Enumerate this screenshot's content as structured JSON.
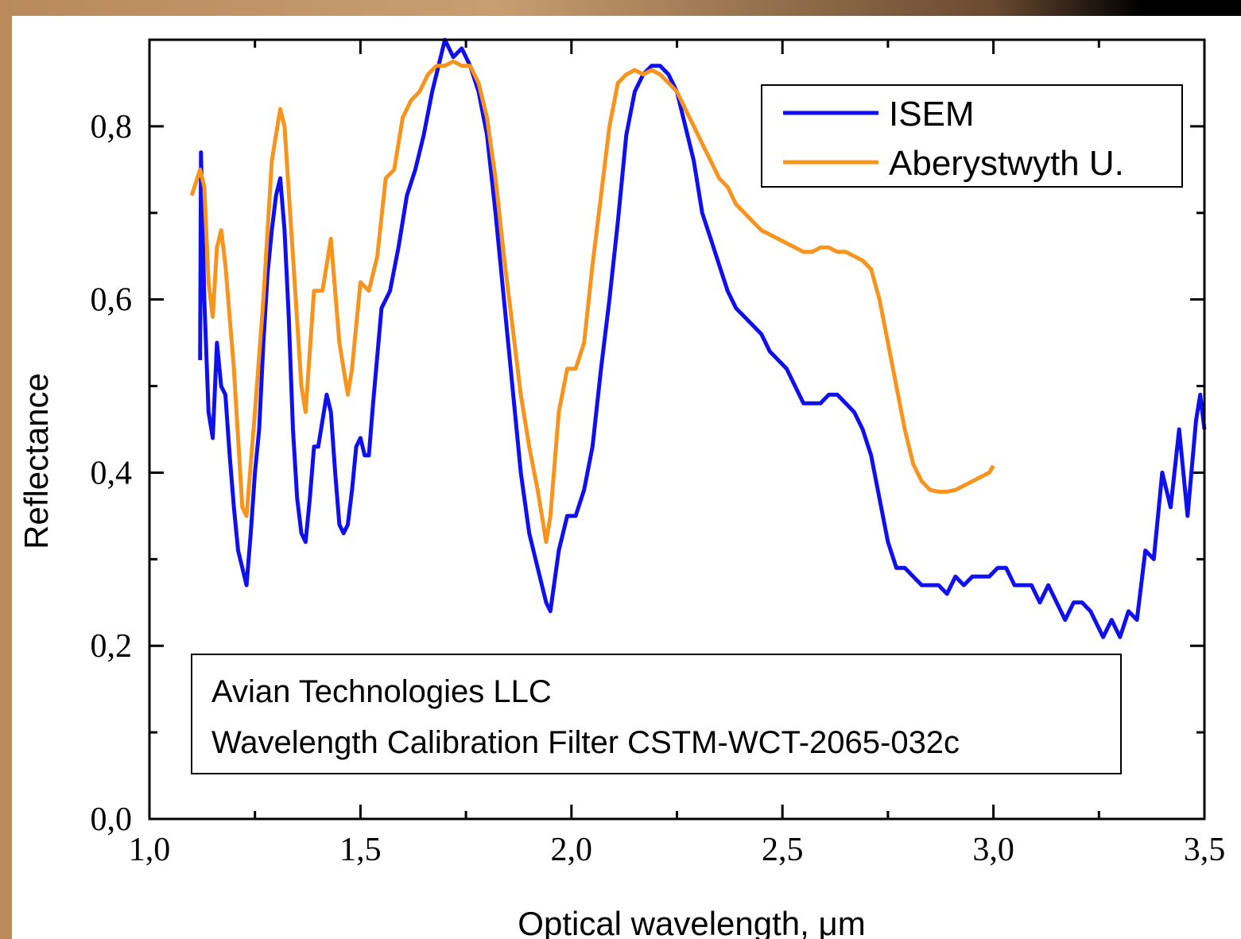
{
  "chart_data": {
    "type": "line",
    "x_label": "Optical wavelength, μm",
    "y_label": "Reflectance",
    "annotations": [
      "Avian Technologies LLC",
      "Wavelength Calibration Filter CSTM-WCT-2065-032c"
    ],
    "legend": "upper right",
    "xlim": [
      1,
      3.5
    ],
    "ylim": [
      0,
      0.9
    ],
    "xticks": [
      {
        "value": 1,
        "label": "1,0"
      },
      {
        "value": 1.5,
        "label": "1,5"
      },
      {
        "value": 2,
        "label": "2,0"
      },
      {
        "value": 2.5,
        "label": "2,5"
      },
      {
        "value": 3,
        "label": "3,0"
      },
      {
        "value": 3.5,
        "label": "3,5"
      }
    ],
    "yticks": [
      {
        "value": 0,
        "label": "0,0"
      },
      {
        "value": 0.2,
        "label": "0,2"
      },
      {
        "value": 0.4,
        "label": "0,4"
      },
      {
        "value": 0.6,
        "label": "0,6"
      },
      {
        "value": 0.8,
        "label": "0,8"
      }
    ],
    "x_minor_ticks": [
      1.25,
      1.75,
      2.25,
      2.75,
      3.25
    ],
    "y_minor_ticks": [
      0.1,
      0.3,
      0.5,
      0.7
    ],
    "series": [
      {
        "name": "ISEM",
        "color": "#1010ee",
        "x": [
          1.12,
          1.122,
          1.13,
          1.14,
          1.15,
          1.16,
          1.17,
          1.18,
          1.19,
          1.2,
          1.21,
          1.22,
          1.23,
          1.24,
          1.25,
          1.26,
          1.27,
          1.28,
          1.29,
          1.3,
          1.31,
          1.32,
          1.33,
          1.34,
          1.35,
          1.36,
          1.37,
          1.38,
          1.39,
          1.4,
          1.41,
          1.42,
          1.43,
          1.44,
          1.45,
          1.46,
          1.47,
          1.48,
          1.49,
          1.5,
          1.51,
          1.52,
          1.53,
          1.55,
          1.57,
          1.59,
          1.61,
          1.63,
          1.65,
          1.67,
          1.69,
          1.7,
          1.72,
          1.74,
          1.76,
          1.78,
          1.8,
          1.82,
          1.84,
          1.86,
          1.88,
          1.9,
          1.92,
          1.94,
          1.95,
          1.97,
          1.99,
          2.01,
          2.03,
          2.05,
          2.07,
          2.09,
          2.11,
          2.13,
          2.15,
          2.17,
          2.19,
          2.21,
          2.23,
          2.25,
          2.27,
          2.29,
          2.31,
          2.33,
          2.35,
          2.37,
          2.39,
          2.41,
          2.43,
          2.45,
          2.47,
          2.49,
          2.51,
          2.53,
          2.55,
          2.57,
          2.59,
          2.61,
          2.63,
          2.65,
          2.67,
          2.69,
          2.71,
          2.73,
          2.75,
          2.77,
          2.79,
          2.81,
          2.83,
          2.85,
          2.87,
          2.89,
          2.91,
          2.93,
          2.95,
          2.97,
          2.99,
          3.01,
          3.03,
          3.05,
          3.07,
          3.09,
          3.11,
          3.13,
          3.15,
          3.17,
          3.19,
          3.21,
          3.23,
          3.25,
          3.26,
          3.28,
          3.3,
          3.32,
          3.34,
          3.36,
          3.38,
          3.4,
          3.42,
          3.44,
          3.46,
          3.48,
          3.49,
          3.5
        ],
        "values": [
          0.53,
          0.77,
          0.6,
          0.47,
          0.44,
          0.55,
          0.5,
          0.49,
          0.42,
          0.36,
          0.31,
          0.29,
          0.27,
          0.33,
          0.4,
          0.45,
          0.55,
          0.63,
          0.68,
          0.72,
          0.74,
          0.68,
          0.58,
          0.45,
          0.37,
          0.33,
          0.32,
          0.37,
          0.43,
          0.43,
          0.46,
          0.49,
          0.47,
          0.4,
          0.34,
          0.33,
          0.34,
          0.38,
          0.43,
          0.44,
          0.42,
          0.42,
          0.48,
          0.59,
          0.61,
          0.66,
          0.72,
          0.75,
          0.79,
          0.84,
          0.88,
          0.9,
          0.88,
          0.89,
          0.87,
          0.84,
          0.79,
          0.7,
          0.6,
          0.5,
          0.4,
          0.33,
          0.29,
          0.25,
          0.24,
          0.31,
          0.35,
          0.35,
          0.38,
          0.43,
          0.52,
          0.6,
          0.69,
          0.79,
          0.84,
          0.86,
          0.87,
          0.87,
          0.86,
          0.84,
          0.8,
          0.76,
          0.7,
          0.67,
          0.64,
          0.61,
          0.59,
          0.58,
          0.57,
          0.56,
          0.54,
          0.53,
          0.52,
          0.5,
          0.48,
          0.48,
          0.48,
          0.49,
          0.49,
          0.48,
          0.47,
          0.45,
          0.42,
          0.37,
          0.32,
          0.29,
          0.29,
          0.28,
          0.27,
          0.27,
          0.27,
          0.26,
          0.28,
          0.27,
          0.28,
          0.28,
          0.28,
          0.29,
          0.29,
          0.27,
          0.27,
          0.27,
          0.25,
          0.27,
          0.25,
          0.23,
          0.25,
          0.25,
          0.24,
          0.22,
          0.21,
          0.23,
          0.21,
          0.24,
          0.23,
          0.31,
          0.3,
          0.4,
          0.36,
          0.45,
          0.35,
          0.46,
          0.49,
          0.45
        ]
      },
      {
        "name": "Aberystwyth U.",
        "color": "#f7941d",
        "x": [
          1.1,
          1.12,
          1.13,
          1.14,
          1.15,
          1.16,
          1.17,
          1.18,
          1.2,
          1.22,
          1.23,
          1.25,
          1.27,
          1.29,
          1.31,
          1.32,
          1.34,
          1.36,
          1.37,
          1.39,
          1.41,
          1.43,
          1.45,
          1.47,
          1.48,
          1.5,
          1.52,
          1.54,
          1.56,
          1.58,
          1.6,
          1.62,
          1.64,
          1.66,
          1.68,
          1.7,
          1.72,
          1.74,
          1.76,
          1.78,
          1.8,
          1.82,
          1.84,
          1.86,
          1.88,
          1.9,
          1.92,
          1.94,
          1.95,
          1.97,
          1.99,
          2.01,
          2.03,
          2.05,
          2.07,
          2.09,
          2.11,
          2.13,
          2.15,
          2.17,
          2.19,
          2.21,
          2.23,
          2.25,
          2.27,
          2.29,
          2.31,
          2.33,
          2.35,
          2.37,
          2.39,
          2.41,
          2.43,
          2.45,
          2.47,
          2.49,
          2.51,
          2.53,
          2.55,
          2.57,
          2.59,
          2.61,
          2.63,
          2.65,
          2.67,
          2.69,
          2.71,
          2.73,
          2.75,
          2.77,
          2.79,
          2.81,
          2.83,
          2.85,
          2.87,
          2.89,
          2.91,
          2.93,
          2.95,
          2.97,
          2.99,
          3
        ],
        "values": [
          0.72,
          0.75,
          0.73,
          0.62,
          0.58,
          0.66,
          0.68,
          0.64,
          0.52,
          0.36,
          0.35,
          0.47,
          0.6,
          0.76,
          0.82,
          0.8,
          0.65,
          0.5,
          0.47,
          0.61,
          0.61,
          0.67,
          0.55,
          0.49,
          0.52,
          0.62,
          0.61,
          0.65,
          0.74,
          0.75,
          0.81,
          0.83,
          0.84,
          0.86,
          0.87,
          0.87,
          0.875,
          0.87,
          0.87,
          0.85,
          0.81,
          0.74,
          0.65,
          0.57,
          0.49,
          0.43,
          0.38,
          0.32,
          0.35,
          0.47,
          0.52,
          0.52,
          0.55,
          0.64,
          0.72,
          0.8,
          0.85,
          0.86,
          0.865,
          0.86,
          0.865,
          0.86,
          0.85,
          0.84,
          0.82,
          0.8,
          0.78,
          0.76,
          0.74,
          0.73,
          0.71,
          0.7,
          0.69,
          0.68,
          0.675,
          0.67,
          0.665,
          0.66,
          0.655,
          0.655,
          0.66,
          0.66,
          0.655,
          0.655,
          0.65,
          0.645,
          0.635,
          0.6,
          0.55,
          0.5,
          0.45,
          0.41,
          0.39,
          0.38,
          0.378,
          0.378,
          0.38,
          0.385,
          0.39,
          0.395,
          0.4,
          0.408
        ]
      }
    ]
  }
}
